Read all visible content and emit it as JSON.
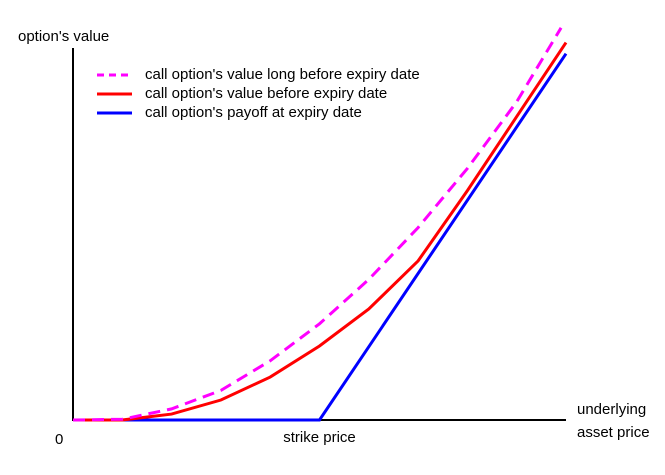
{
  "chart_data": {
    "type": "line",
    "y_label": "option's value",
    "x_label": [
      "underlying",
      "asset price"
    ],
    "origin_label": "0",
    "annotations": [
      {
        "text": "strike price",
        "x": 50
      }
    ],
    "xlim": [
      0,
      100
    ],
    "ylim": [
      0,
      110
    ],
    "legend": "upper left",
    "series": [
      {
        "name": "call option's value long before expiry date",
        "color": "#ff00ff",
        "line_style": "dashed",
        "x": [
          0,
          10,
          20,
          30,
          40,
          50,
          60,
          70,
          80,
          90,
          99
        ],
        "values": [
          0,
          0.2,
          3,
          8,
          16,
          26,
          38,
          52,
          68,
          86,
          106
        ]
      },
      {
        "name": "call option's value before expiry date",
        "color": "#ff0000",
        "line_style": "solid",
        "x": [
          0,
          10,
          20,
          30,
          40,
          50,
          60,
          70,
          80,
          90,
          100
        ],
        "values": [
          0,
          0,
          1.6,
          5.4,
          11.6,
          20,
          30,
          43,
          62,
          82,
          102
        ]
      },
      {
        "name": "call option's payoff at expiry date",
        "color": "#0000ff",
        "line_style": "solid",
        "x": [
          0,
          50,
          100
        ],
        "values": [
          0,
          0,
          99
        ]
      }
    ]
  }
}
